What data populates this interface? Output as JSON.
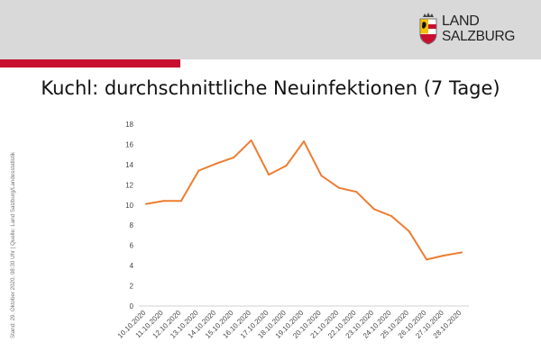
{
  "header": {
    "logo_line1": "LAND",
    "logo_line2": "SALZBURG",
    "colors": {
      "band": "#d9d9d9",
      "accent": "#c8102e"
    }
  },
  "title": "Kuchl: durchschnittliche Neuinfektionen (7 Tage)",
  "side_note": "Stand: 29. Oktober 2020, 08:30 Uhr  |  Quelle: Land Salzburg/Landesstatistik",
  "chart_data": {
    "type": "line",
    "title": "",
    "xlabel": "",
    "ylabel": "",
    "ylim": [
      0,
      18
    ],
    "yticks": [
      0,
      2,
      4,
      6,
      8,
      10,
      12,
      14,
      16,
      18
    ],
    "grid": false,
    "legend": "none",
    "color": "#ed7d31",
    "categories": [
      "10.10.2020",
      "11.10.2020",
      "12.10.2020",
      "13.10.2020",
      "14.10.2020",
      "15.10.2020",
      "16.10.2020",
      "17.10.2020",
      "18.10.2020",
      "19.10.2020",
      "20.10.2020",
      "21.10.2020",
      "22.10.2020",
      "23.10.2020",
      "24.10.2020",
      "25.10.2020",
      "26.10.2020",
      "27.10.2020",
      "28.10.2020"
    ],
    "series": [
      {
        "values": [
          10.1,
          10.4,
          10.4,
          13.4,
          14.1,
          14.7,
          16.4,
          13.0,
          13.9,
          16.3,
          12.9,
          11.7,
          11.3,
          9.6,
          8.9,
          7.4,
          4.6,
          5.0,
          5.3
        ]
      }
    ]
  }
}
